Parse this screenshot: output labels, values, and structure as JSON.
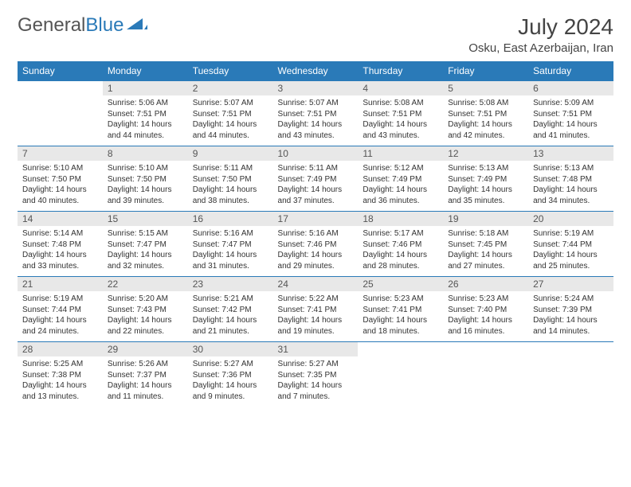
{
  "logo": {
    "text1": "General",
    "text2": "Blue"
  },
  "header": {
    "month": "July 2024",
    "location": "Osku, East Azerbaijan, Iran"
  },
  "weekdays": [
    "Sunday",
    "Monday",
    "Tuesday",
    "Wednesday",
    "Thursday",
    "Friday",
    "Saturday"
  ],
  "colors": {
    "accent": "#2a7ab8",
    "dayBg": "#e8e8e8",
    "text": "#333333"
  },
  "weeks": [
    [
      null,
      {
        "n": "1",
        "sr": "5:06 AM",
        "ss": "7:51 PM",
        "dl": "14 hours and 44 minutes."
      },
      {
        "n": "2",
        "sr": "5:07 AM",
        "ss": "7:51 PM",
        "dl": "14 hours and 44 minutes."
      },
      {
        "n": "3",
        "sr": "5:07 AM",
        "ss": "7:51 PM",
        "dl": "14 hours and 43 minutes."
      },
      {
        "n": "4",
        "sr": "5:08 AM",
        "ss": "7:51 PM",
        "dl": "14 hours and 43 minutes."
      },
      {
        "n": "5",
        "sr": "5:08 AM",
        "ss": "7:51 PM",
        "dl": "14 hours and 42 minutes."
      },
      {
        "n": "6",
        "sr": "5:09 AM",
        "ss": "7:51 PM",
        "dl": "14 hours and 41 minutes."
      }
    ],
    [
      {
        "n": "7",
        "sr": "5:10 AM",
        "ss": "7:50 PM",
        "dl": "14 hours and 40 minutes."
      },
      {
        "n": "8",
        "sr": "5:10 AM",
        "ss": "7:50 PM",
        "dl": "14 hours and 39 minutes."
      },
      {
        "n": "9",
        "sr": "5:11 AM",
        "ss": "7:50 PM",
        "dl": "14 hours and 38 minutes."
      },
      {
        "n": "10",
        "sr": "5:11 AM",
        "ss": "7:49 PM",
        "dl": "14 hours and 37 minutes."
      },
      {
        "n": "11",
        "sr": "5:12 AM",
        "ss": "7:49 PM",
        "dl": "14 hours and 36 minutes."
      },
      {
        "n": "12",
        "sr": "5:13 AM",
        "ss": "7:49 PM",
        "dl": "14 hours and 35 minutes."
      },
      {
        "n": "13",
        "sr": "5:13 AM",
        "ss": "7:48 PM",
        "dl": "14 hours and 34 minutes."
      }
    ],
    [
      {
        "n": "14",
        "sr": "5:14 AM",
        "ss": "7:48 PM",
        "dl": "14 hours and 33 minutes."
      },
      {
        "n": "15",
        "sr": "5:15 AM",
        "ss": "7:47 PM",
        "dl": "14 hours and 32 minutes."
      },
      {
        "n": "16",
        "sr": "5:16 AM",
        "ss": "7:47 PM",
        "dl": "14 hours and 31 minutes."
      },
      {
        "n": "17",
        "sr": "5:16 AM",
        "ss": "7:46 PM",
        "dl": "14 hours and 29 minutes."
      },
      {
        "n": "18",
        "sr": "5:17 AM",
        "ss": "7:46 PM",
        "dl": "14 hours and 28 minutes."
      },
      {
        "n": "19",
        "sr": "5:18 AM",
        "ss": "7:45 PM",
        "dl": "14 hours and 27 minutes."
      },
      {
        "n": "20",
        "sr": "5:19 AM",
        "ss": "7:44 PM",
        "dl": "14 hours and 25 minutes."
      }
    ],
    [
      {
        "n": "21",
        "sr": "5:19 AM",
        "ss": "7:44 PM",
        "dl": "14 hours and 24 minutes."
      },
      {
        "n": "22",
        "sr": "5:20 AM",
        "ss": "7:43 PM",
        "dl": "14 hours and 22 minutes."
      },
      {
        "n": "23",
        "sr": "5:21 AM",
        "ss": "7:42 PM",
        "dl": "14 hours and 21 minutes."
      },
      {
        "n": "24",
        "sr": "5:22 AM",
        "ss": "7:41 PM",
        "dl": "14 hours and 19 minutes."
      },
      {
        "n": "25",
        "sr": "5:23 AM",
        "ss": "7:41 PM",
        "dl": "14 hours and 18 minutes."
      },
      {
        "n": "26",
        "sr": "5:23 AM",
        "ss": "7:40 PM",
        "dl": "14 hours and 16 minutes."
      },
      {
        "n": "27",
        "sr": "5:24 AM",
        "ss": "7:39 PM",
        "dl": "14 hours and 14 minutes."
      }
    ],
    [
      {
        "n": "28",
        "sr": "5:25 AM",
        "ss": "7:38 PM",
        "dl": "14 hours and 13 minutes."
      },
      {
        "n": "29",
        "sr": "5:26 AM",
        "ss": "7:37 PM",
        "dl": "14 hours and 11 minutes."
      },
      {
        "n": "30",
        "sr": "5:27 AM",
        "ss": "7:36 PM",
        "dl": "14 hours and 9 minutes."
      },
      {
        "n": "31",
        "sr": "5:27 AM",
        "ss": "7:35 PM",
        "dl": "14 hours and 7 minutes."
      },
      null,
      null,
      null
    ]
  ],
  "labels": {
    "sunrise": "Sunrise:",
    "sunset": "Sunset:",
    "daylight": "Daylight:"
  }
}
